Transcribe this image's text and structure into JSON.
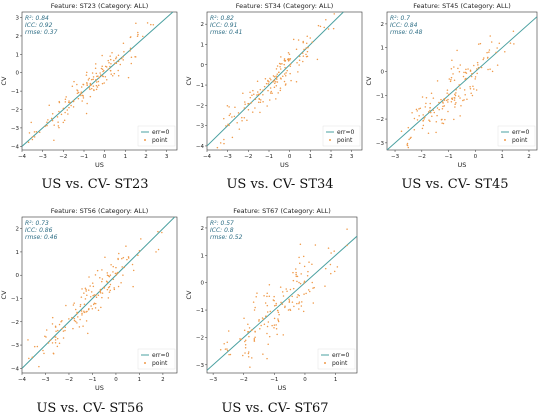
{
  "colors": {
    "identity_line": "#4aa0a0",
    "points": "#ef9a4a",
    "stats_text": "#2f6f86",
    "axes": "#333333"
  },
  "chart_data": [
    {
      "type": "scatter",
      "title": "Feature: ST23 (Category: ALL)",
      "xlabel": "US",
      "ylabel": "CV",
      "xlim": [
        -4,
        3.5
      ],
      "ylim": [
        -4.2,
        3.3
      ],
      "xticks": [
        -4,
        -3,
        -2,
        -1,
        0,
        1,
        2,
        3
      ],
      "yticks": [
        -4,
        -3,
        -2,
        -1,
        0,
        1,
        2,
        3
      ],
      "stats": {
        "r2": "R²: 0.84",
        "icc": "ICC: 0.92",
        "rmse": "rmse: 0.37"
      },
      "legend": {
        "line": "err=0",
        "point": "point",
        "position": "lower-right"
      },
      "series": [
        {
          "name": "point",
          "spread": 0.37,
          "x_range": [
            -3.7,
            3.1
          ],
          "n": 160
        }
      ],
      "caption": "US vs. CV- ST23"
    },
    {
      "type": "scatter",
      "title": "Feature: ST34 (Category: ALL)",
      "xlabel": "US",
      "ylabel": "CV",
      "xlim": [
        -4,
        3.5
      ],
      "ylim": [
        -4.2,
        2.6
      ],
      "xticks": [
        -4,
        -3,
        -2,
        -1,
        0,
        1,
        2,
        3
      ],
      "yticks": [
        -4,
        -3,
        -2,
        -1,
        0,
        1,
        2
      ],
      "stats": {
        "r2": "R²: 0.82",
        "icc": "ICC: 0.91",
        "rmse": "rmse: 0.41"
      },
      "legend": {
        "line": "err=0",
        "point": "point",
        "position": "lower-right"
      },
      "series": [
        {
          "name": "point",
          "spread": 0.41,
          "x_range": [
            -3.5,
            3.0
          ],
          "n": 160
        }
      ],
      "caption": "US vs. CV- ST34"
    },
    {
      "type": "scatter",
      "title": "Feature: ST45 (Category: ALL)",
      "xlabel": "US",
      "ylabel": "CV",
      "xlim": [
        -3.3,
        2.3
      ],
      "ylim": [
        -3.3,
        2.5
      ],
      "xticks": [
        -3,
        -2,
        -1,
        0,
        1,
        2
      ],
      "yticks": [
        -3,
        -2,
        -1,
        0,
        1,
        2
      ],
      "stats": {
        "r2": "R²: 0.7",
        "icc": "ICC: 0.84",
        "rmse": "rmse: 0.48"
      },
      "legend": {
        "line": "err=0",
        "point": "point",
        "position": "lower-right"
      },
      "series": [
        {
          "name": "point",
          "spread": 0.48,
          "x_range": [
            -3.0,
            2.0
          ],
          "n": 160
        }
      ],
      "caption": "US vs. CV- ST45"
    },
    {
      "type": "scatter",
      "title": "Feature: ST56 (Category: ALL)",
      "xlabel": "US",
      "ylabel": "CV",
      "xlim": [
        -4,
        2.6
      ],
      "ylim": [
        -4.2,
        2.5
      ],
      "xticks": [
        -4,
        -3,
        -2,
        -1,
        0,
        1,
        2
      ],
      "yticks": [
        -4,
        -3,
        -2,
        -1,
        0,
        1,
        2
      ],
      "stats": {
        "r2": "R²: 0.73",
        "icc": "ICC: 0.86",
        "rmse": "rmse: 0.46"
      },
      "legend": {
        "line": "err=0",
        "point": "point",
        "position": "lower-right"
      },
      "series": [
        {
          "name": "point",
          "spread": 0.46,
          "x_range": [
            -3.8,
            2.3
          ],
          "n": 160
        }
      ],
      "caption": "US vs. CV- ST56"
    },
    {
      "type": "scatter",
      "title": "Feature: ST67 (Category: ALL)",
      "xlabel": "US",
      "ylabel": "CV",
      "xlim": [
        -3.2,
        1.7
      ],
      "ylim": [
        -3.3,
        2.4
      ],
      "xticks": [
        -3,
        -2,
        -1,
        0,
        1
      ],
      "yticks": [
        -3,
        -2,
        -1,
        0,
        1,
        2
      ],
      "stats": {
        "r2": "R²: 0.57",
        "icc": "ICC: 0.8",
        "rmse": "rmse: 0.52"
      },
      "legend": {
        "line": "err=0",
        "point": "point",
        "position": "lower-right"
      },
      "series": [
        {
          "name": "point",
          "spread": 0.52,
          "x_range": [
            -2.8,
            1.5
          ],
          "n": 160
        }
      ],
      "caption": "US vs. CV- ST67"
    }
  ]
}
